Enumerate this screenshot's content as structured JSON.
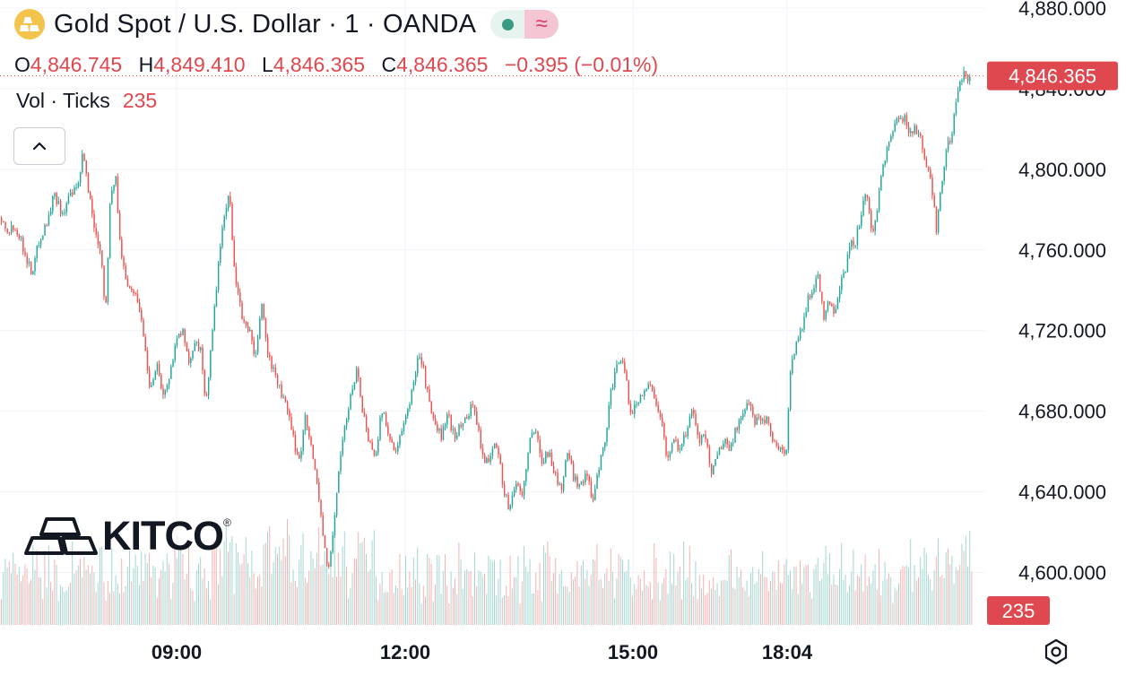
{
  "header": {
    "title": "Gold Spot / U.S. Dollar · 1 · OANDA",
    "wave_symbol": "≈"
  },
  "ohlc": {
    "o_label": "O",
    "o": "4,846.745",
    "h_label": "H",
    "h": "4,849.410",
    "l_label": "L",
    "l": "4,846.365",
    "c_label": "C",
    "c": "4,846.365",
    "change": "−0.395 (−0.01%)"
  },
  "volume": {
    "label": "Vol · Ticks",
    "value": "235"
  },
  "logo": {
    "text": "KITCO",
    "reg": "®"
  },
  "colors": {
    "up": "#26a69a",
    "down": "#ef5350",
    "grid": "#f0f3fa",
    "text": "#131722",
    "tag": "#e0484f"
  },
  "icons": {
    "collapse": "chevron-up-icon",
    "settings": "gear-icon",
    "coin": "gold-bars-icon"
  },
  "chart_data": {
    "type": "candlestick",
    "symbol": "Gold Spot / U.S. Dollar",
    "interval": "1",
    "source": "OANDA",
    "y_tick_labels": [
      "4,880.000",
      "4,800.000",
      "4,760.000",
      "4,720.000",
      "4,680.000",
      "4,640.000",
      "4,600.000"
    ],
    "y_ticks": [
      4880,
      4840,
      4800,
      4760,
      4720,
      4680,
      4640,
      4600
    ],
    "ylim": [
      4574,
      4884
    ],
    "x_tick_labels": [
      "09:00",
      "12:00",
      "15:00",
      "18:04"
    ],
    "last_price": 4846.365,
    "last_price_label": "4,846.365",
    "last_volume_label": "235",
    "price_anchors": [
      [
        0,
        4776
      ],
      [
        9,
        4770
      ],
      [
        17,
        4772
      ],
      [
        26,
        4760
      ],
      [
        35,
        4748
      ],
      [
        43,
        4765
      ],
      [
        52,
        4774
      ],
      [
        60,
        4788
      ],
      [
        69,
        4778
      ],
      [
        78,
        4787
      ],
      [
        86,
        4790
      ],
      [
        92,
        4808
      ],
      [
        98,
        4790
      ],
      [
        105,
        4770
      ],
      [
        112,
        4760
      ],
      [
        117,
        4728
      ],
      [
        122,
        4782
      ],
      [
        128,
        4798
      ],
      [
        134,
        4758
      ],
      [
        141,
        4745
      ],
      [
        148,
        4740
      ],
      [
        155,
        4732
      ],
      [
        161,
        4712
      ],
      [
        167,
        4690
      ],
      [
        174,
        4705
      ],
      [
        181,
        4688
      ],
      [
        188,
        4695
      ],
      [
        195,
        4715
      ],
      [
        203,
        4720
      ],
      [
        210,
        4702
      ],
      [
        217,
        4717
      ],
      [
        223,
        4710
      ],
      [
        229,
        4684
      ],
      [
        235,
        4712
      ],
      [
        242,
        4748
      ],
      [
        249,
        4775
      ],
      [
        255,
        4788
      ],
      [
        262,
        4745
      ],
      [
        270,
        4725
      ],
      [
        278,
        4720
      ],
      [
        284,
        4703
      ],
      [
        291,
        4735
      ],
      [
        298,
        4708
      ],
      [
        305,
        4700
      ],
      [
        312,
        4690
      ],
      [
        320,
        4680
      ],
      [
        327,
        4665
      ],
      [
        334,
        4655
      ],
      [
        340,
        4680
      ],
      [
        347,
        4660
      ],
      [
        353,
        4645
      ],
      [
        359,
        4622
      ],
      [
        365,
        4598
      ],
      [
        371,
        4620
      ],
      [
        377,
        4650
      ],
      [
        383,
        4670
      ],
      [
        390,
        4685
      ],
      [
        397,
        4702
      ],
      [
        404,
        4680
      ],
      [
        411,
        4665
      ],
      [
        418,
        4658
      ],
      [
        425,
        4680
      ],
      [
        433,
        4670
      ],
      [
        440,
        4658
      ],
      [
        447,
        4668
      ],
      [
        454,
        4680
      ],
      [
        460,
        4692
      ],
      [
        466,
        4710
      ],
      [
        472,
        4700
      ],
      [
        478,
        4684
      ],
      [
        485,
        4672
      ],
      [
        492,
        4668
      ],
      [
        499,
        4678
      ],
      [
        506,
        4668
      ],
      [
        513,
        4672
      ],
      [
        520,
        4678
      ],
      [
        527,
        4684
      ],
      [
        534,
        4668
      ],
      [
        540,
        4652
      ],
      [
        547,
        4660
      ],
      [
        554,
        4665
      ],
      [
        561,
        4640
      ],
      [
        568,
        4632
      ],
      [
        575,
        4645
      ],
      [
        582,
        4638
      ],
      [
        590,
        4665
      ],
      [
        597,
        4670
      ],
      [
        604,
        4656
      ],
      [
        611,
        4660
      ],
      [
        618,
        4650
      ],
      [
        625,
        4640
      ],
      [
        632,
        4660
      ],
      [
        639,
        4648
      ],
      [
        646,
        4643
      ],
      [
        653,
        4650
      ],
      [
        660,
        4636
      ],
      [
        667,
        4652
      ],
      [
        674,
        4665
      ],
      [
        681,
        4690
      ],
      [
        688,
        4702
      ],
      [
        695,
        4705
      ],
      [
        702,
        4680
      ],
      [
        709,
        4682
      ],
      [
        716,
        4690
      ],
      [
        723,
        4693
      ],
      [
        730,
        4688
      ],
      [
        737,
        4675
      ],
      [
        744,
        4655
      ],
      [
        751,
        4668
      ],
      [
        758,
        4660
      ],
      [
        765,
        4670
      ],
      [
        772,
        4683
      ],
      [
        779,
        4665
      ],
      [
        786,
        4668
      ],
      [
        793,
        4650
      ],
      [
        800,
        4660
      ],
      [
        807,
        4665
      ],
      [
        814,
        4662
      ],
      [
        821,
        4672
      ],
      [
        828,
        4680
      ],
      [
        835,
        4683
      ],
      [
        842,
        4675
      ],
      [
        849,
        4678
      ],
      [
        856,
        4675
      ],
      [
        863,
        4665
      ],
      [
        870,
        4660
      ],
      [
        876,
        4658
      ],
      [
        882,
        4705
      ],
      [
        888,
        4715
      ],
      [
        894,
        4720
      ],
      [
        900,
        4735
      ],
      [
        906,
        4740
      ],
      [
        912,
        4750
      ],
      [
        918,
        4725
      ],
      [
        924,
        4735
      ],
      [
        930,
        4730
      ],
      [
        936,
        4742
      ],
      [
        942,
        4750
      ],
      [
        948,
        4762
      ],
      [
        954,
        4765
      ],
      [
        960,
        4778
      ],
      [
        966,
        4790
      ],
      [
        972,
        4765
      ],
      [
        978,
        4782
      ],
      [
        984,
        4802
      ],
      [
        990,
        4812
      ],
      [
        996,
        4820
      ],
      [
        1002,
        4825
      ],
      [
        1008,
        4826
      ],
      [
        1014,
        4818
      ],
      [
        1020,
        4822
      ],
      [
        1026,
        4815
      ],
      [
        1032,
        4800
      ],
      [
        1038,
        4795
      ],
      [
        1044,
        4770
      ],
      [
        1050,
        4795
      ],
      [
        1056,
        4810
      ],
      [
        1062,
        4820
      ],
      [
        1068,
        4838
      ],
      [
        1074,
        4847
      ],
      [
        1080,
        4846
      ],
      [
        1085,
        4846.365
      ]
    ]
  }
}
